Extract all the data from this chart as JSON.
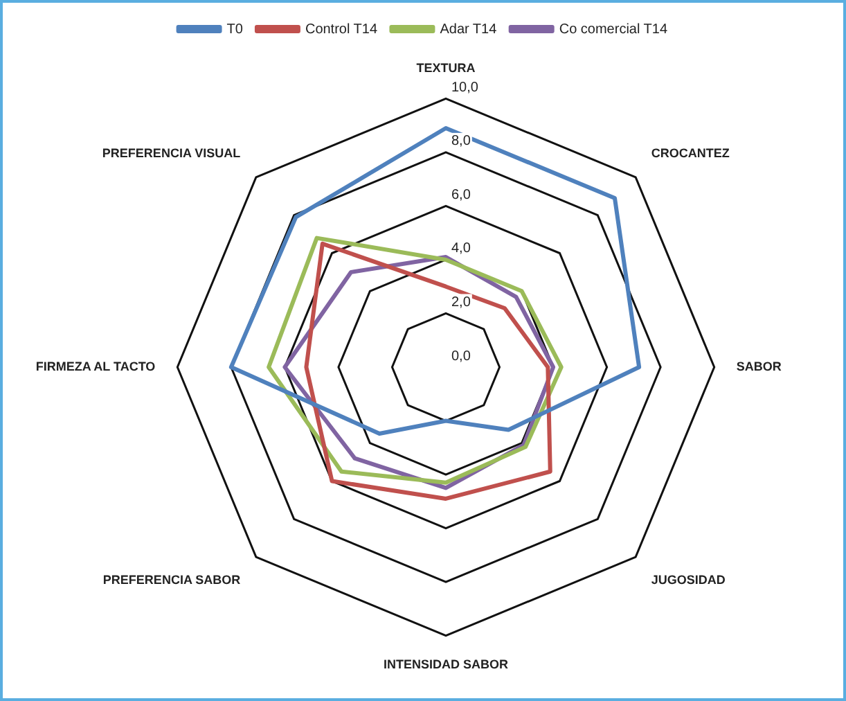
{
  "chart_data": {
    "type": "radar",
    "categories": [
      "TEXTURA",
      "CROCANTEZ",
      "SABOR",
      "JUGOSIDAD",
      "INTENSIDAD SABOR",
      "PREFERENCIA SABOR",
      "FIRMEZA AL TACTO",
      "PREFERENCIA VISUAL"
    ],
    "series": [
      {
        "name": "T0",
        "color": "#4f81bd",
        "values": [
          8.9,
          8.9,
          7.2,
          3.3,
          2.0,
          3.5,
          8.0,
          7.9
        ]
      },
      {
        "name": "Control T14",
        "color": "#c0504d",
        "values": [
          3.0,
          3.1,
          3.8,
          5.5,
          4.9,
          6.0,
          5.2,
          6.5
        ]
      },
      {
        "name": "Adar T14",
        "color": "#9bbb59",
        "values": [
          4.0,
          4.0,
          4.3,
          4.2,
          4.3,
          5.5,
          6.6,
          6.8
        ]
      },
      {
        "name": "Co comercial T14",
        "color": "#8064a2",
        "values": [
          4.1,
          3.7,
          4.0,
          4.1,
          4.5,
          4.8,
          6.0,
          5.0
        ]
      }
    ],
    "ylim": [
      0,
      10
    ],
    "yticks": [
      {
        "value": 0,
        "label": "0,0"
      },
      {
        "value": 2,
        "label": "2,0"
      },
      {
        "value": 4,
        "label": "4,0"
      },
      {
        "value": 6,
        "label": "6,0"
      },
      {
        "value": 8,
        "label": "8,0"
      },
      {
        "value": 10,
        "label": "10,0"
      }
    ],
    "legend": "top",
    "marker": "none",
    "grid": true
  }
}
